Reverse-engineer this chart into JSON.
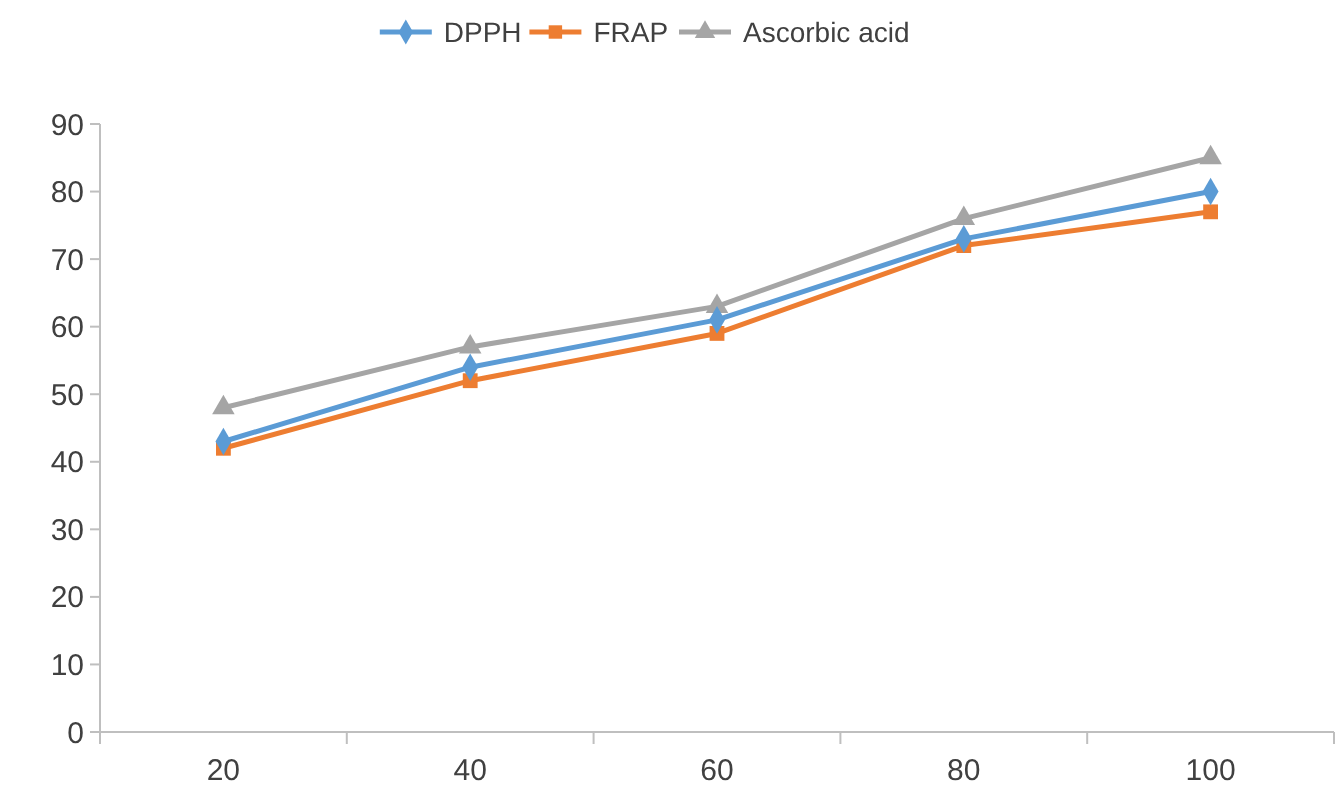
{
  "chart_data": {
    "type": "line",
    "categories": [
      "20",
      "40",
      "60",
      "80",
      "100"
    ],
    "series": [
      {
        "name": "DPPH",
        "color": "#5b9bd5",
        "marker": "diamond",
        "values": [
          43,
          54,
          61,
          73,
          80
        ]
      },
      {
        "name": "FRAP",
        "color": "#ed7d31",
        "marker": "square",
        "values": [
          42,
          52,
          59,
          72,
          77
        ]
      },
      {
        "name": "Ascorbic acid",
        "color": "#a5a5a5",
        "marker": "triangle",
        "values": [
          48,
          57,
          63,
          76,
          85
        ]
      }
    ],
    "ylim": [
      0,
      90
    ],
    "yticks": [
      0,
      10,
      20,
      30,
      40,
      50,
      60,
      70,
      80,
      90
    ],
    "grid": false,
    "legend": "top"
  }
}
